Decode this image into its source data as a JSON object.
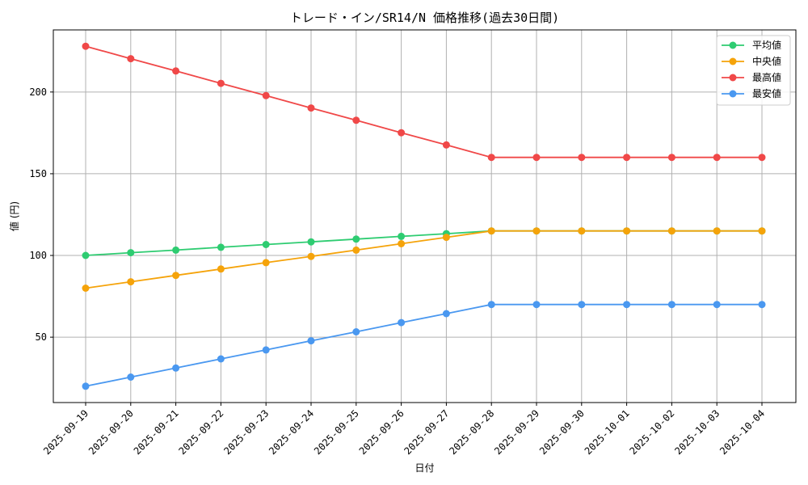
{
  "chart_data": {
    "type": "line",
    "title": "トレード・イン/SR14/N 価格推移(過去30日間)",
    "xlabel": "日付",
    "ylabel": "値 (円)",
    "grid": true,
    "legend_position": "top-right",
    "ylim": [
      10,
      238
    ],
    "yticks": [
      50,
      100,
      150,
      200
    ],
    "categories": [
      "2025-09-19",
      "2025-09-20",
      "2025-09-21",
      "2025-09-22",
      "2025-09-23",
      "2025-09-24",
      "2025-09-25",
      "2025-09-26",
      "2025-09-27",
      "2025-09-28",
      "2025-09-29",
      "2025-09-30",
      "2025-10-01",
      "2025-10-02",
      "2025-10-03",
      "2025-10-04"
    ],
    "series": [
      {
        "name": "平均値",
        "color": "#2ecc71",
        "values": [
          100,
          101.7,
          103.3,
          105,
          106.7,
          108.3,
          110,
          111.7,
          113.3,
          115,
          115,
          115,
          115,
          115,
          115,
          115
        ]
      },
      {
        "name": "中央値",
        "color": "#f5a30a",
        "values": [
          80,
          83.9,
          87.8,
          91.7,
          95.6,
          99.4,
          103.3,
          107.2,
          111.1,
          115,
          115,
          115,
          115,
          115,
          115,
          115
        ]
      },
      {
        "name": "最高値",
        "color": "#f04848",
        "values": [
          228,
          220.4,
          212.9,
          205.3,
          197.8,
          190.2,
          182.7,
          175.1,
          167.6,
          160,
          160,
          160,
          160,
          160,
          160,
          160
        ]
      },
      {
        "name": "最安値",
        "color": "#4a98f0",
        "values": [
          20,
          25.6,
          31.1,
          36.7,
          42.2,
          47.8,
          53.3,
          58.9,
          64.4,
          70,
          70,
          70,
          70,
          70,
          70,
          70
        ]
      }
    ]
  }
}
